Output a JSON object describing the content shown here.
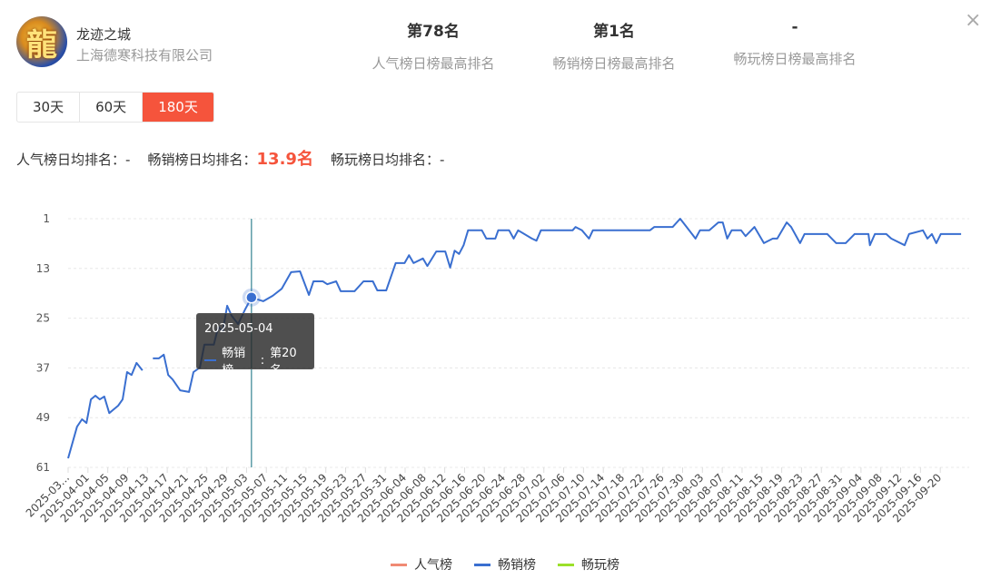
{
  "app": {
    "name": "龙迹之城",
    "company": "上海德寒科技有限公司",
    "icon_glyph": "龍"
  },
  "stats": [
    {
      "value": "第78名",
      "label": "人气榜日榜最高排名"
    },
    {
      "value": "第1名",
      "label": "畅销榜日榜最高排名"
    },
    {
      "value": "-",
      "label": "畅玩榜日榜最高排名"
    }
  ],
  "close_icon": "×",
  "range_tabs": [
    {
      "label": "30天"
    },
    {
      "label": "60天"
    },
    {
      "label": "180天",
      "active": true
    }
  ],
  "averages": {
    "popular_label": "人气榜日均排名：",
    "popular_value": "-",
    "sales_label": "畅销榜日均排名：",
    "sales_value": "13.9名",
    "play_label": "畅玩榜日均排名：",
    "play_value": "-"
  },
  "tooltip": {
    "date": "2025-05-04",
    "series": "畅销榜",
    "value": "第20名"
  },
  "colors": {
    "accent": "#f5543c",
    "popular": "#f08a74",
    "sales": "#3a6fd0",
    "play": "#9be02a"
  },
  "chart_data": {
    "type": "line",
    "y_inverted": true,
    "ylim": [
      1,
      61
    ],
    "yticks": [
      1,
      13,
      25,
      37,
      49,
      61
    ],
    "x_unit": "day index",
    "xlim": [
      0,
      180
    ],
    "xtick_labels": [
      "2025-03...",
      "2025-04-01",
      "2025-04-05",
      "2025-04-09",
      "2025-04-13",
      "2025-04-17",
      "2025-04-21",
      "2025-04-25",
      "2025-04-29",
      "2025-05-03",
      "2025-05-07",
      "2025-05-11",
      "2025-05-15",
      "2025-05-19",
      "2025-05-23",
      "2025-05-27",
      "2025-05-31",
      "2025-06-04",
      "2025-06-08",
      "2025-06-12",
      "2025-06-16",
      "2025-06-20",
      "2025-06-24",
      "2025-06-28",
      "2025-07-02",
      "2025-07-06",
      "2025-07-10",
      "2025-07-14",
      "2025-07-18",
      "2025-07-22",
      "2025-07-26",
      "2025-07-30",
      "2025-08-03",
      "2025-08-07",
      "2025-08-11",
      "2025-08-15",
      "2025-08-19",
      "2025-08-23",
      "2025-08-27",
      "2025-08-31",
      "2025-09-04",
      "2025-09-08",
      "2025-09-12",
      "2025-09-16",
      "2025-09-20"
    ],
    "legend": [
      {
        "name": "人气榜"
      },
      {
        "name": "畅销榜"
      },
      {
        "name": "畅玩榜"
      }
    ],
    "legend_position": "bottom-center",
    "highlight": {
      "day": 37,
      "rank": 20
    },
    "series": [
      {
        "name": "畅销榜",
        "points": [
          [
            0,
            58.8
          ],
          [
            1.8,
            51.2
          ],
          [
            2.8,
            49.4
          ],
          [
            3.7,
            50.3
          ],
          [
            4.6,
            44.6
          ],
          [
            5.5,
            43.7
          ],
          [
            6.4,
            44.6
          ],
          [
            7.3,
            43.9
          ],
          [
            8.3,
            47.9
          ],
          [
            10.1,
            46.1
          ],
          [
            11,
            44.6
          ],
          [
            11.9,
            38
          ],
          [
            12.8,
            38.7
          ],
          [
            13.8,
            35.8
          ],
          [
            15,
            37.6
          ],
          null,
          [
            17.1,
            34.7
          ],
          [
            18.3,
            34.7
          ],
          [
            19.3,
            33.8
          ],
          [
            20.2,
            38.7
          ],
          [
            21.1,
            39.8
          ],
          [
            22.6,
            42.4
          ],
          [
            24.4,
            42.8
          ],
          [
            25.3,
            38
          ],
          [
            26.6,
            36.9
          ],
          [
            27.5,
            31.4
          ],
          [
            29.4,
            31.4
          ],
          [
            30.3,
            27.1
          ],
          [
            31.2,
            28.2
          ],
          [
            32.1,
            22
          ],
          [
            33,
            24.4
          ],
          [
            34.3,
            26.4
          ],
          [
            35.8,
            22.7
          ],
          [
            37,
            20
          ],
          [
            39.4,
            20.9
          ],
          [
            41.3,
            19.6
          ],
          [
            43.1,
            17.9
          ],
          [
            45,
            13.9
          ],
          [
            46.8,
            13.7
          ],
          [
            48.6,
            19.4
          ],
          [
            49.5,
            16.1
          ],
          [
            51.4,
            16.1
          ],
          [
            52.3,
            16.8
          ],
          [
            54.1,
            16.1
          ],
          [
            55,
            18.5
          ],
          [
            57.8,
            18.5
          ],
          [
            59.6,
            16.1
          ],
          [
            61.5,
            16.1
          ],
          [
            62.4,
            18.3
          ],
          [
            64.2,
            18.3
          ],
          [
            66.1,
            11.7
          ],
          [
            67.9,
            11.7
          ],
          [
            68.8,
            9.8
          ],
          [
            69.7,
            11.7
          ],
          [
            71.6,
            10.6
          ],
          [
            72.5,
            12.4
          ],
          [
            74.3,
            8.9
          ],
          [
            76.1,
            8.9
          ],
          [
            77.1,
            12.8
          ],
          [
            78,
            8.7
          ],
          [
            78.9,
            9.5
          ],
          [
            79.8,
            7.4
          ],
          [
            80.7,
            3.8
          ],
          [
            83.5,
            3.8
          ],
          [
            84.4,
            5.8
          ],
          [
            86.2,
            5.8
          ],
          [
            86.8,
            3.8
          ],
          [
            89,
            3.8
          ],
          [
            89.9,
            5.8
          ],
          [
            90.8,
            3.8
          ],
          [
            93.6,
            5.8
          ],
          [
            94.5,
            6.3
          ],
          [
            95.4,
            3.8
          ],
          [
            101.8,
            3.8
          ],
          [
            102.4,
            3
          ],
          [
            103.7,
            3.8
          ],
          [
            105.1,
            5.8
          ],
          [
            105.9,
            3.8
          ],
          [
            117.4,
            3.8
          ],
          [
            118.3,
            3
          ],
          [
            122,
            3
          ],
          [
            123.5,
            1
          ],
          [
            124.8,
            3
          ],
          [
            126.6,
            5.8
          ],
          [
            127.5,
            3.8
          ],
          [
            129.4,
            3.8
          ],
          [
            131.2,
            1.9
          ],
          [
            132.1,
            1.9
          ],
          [
            133,
            5.8
          ],
          [
            133.9,
            3.8
          ],
          [
            135.8,
            3.8
          ],
          [
            136.7,
            5.2
          ],
          [
            138.5,
            3
          ],
          [
            140.4,
            6.9
          ],
          [
            142.2,
            5.8
          ],
          [
            143.1,
            5.8
          ],
          [
            145,
            1.9
          ],
          [
            145.9,
            3
          ],
          [
            147.7,
            6.9
          ],
          [
            148.6,
            4.7
          ],
          [
            153.2,
            4.7
          ],
          [
            155,
            6.9
          ],
          [
            156.9,
            6.9
          ],
          [
            158.7,
            4.7
          ],
          [
            161.5,
            4.7
          ],
          [
            161.8,
            7.4
          ],
          [
            162.8,
            4.7
          ],
          [
            165.1,
            4.7
          ],
          [
            166.1,
            5.8
          ],
          [
            168.8,
            7.4
          ],
          [
            169.7,
            4.7
          ],
          [
            172.5,
            3.8
          ],
          [
            173.4,
            5.8
          ],
          [
            174.3,
            4.7
          ],
          [
            175.2,
            6.9
          ],
          [
            176.1,
            4.7
          ],
          [
            180.2,
            4.7
          ]
        ]
      }
    ]
  }
}
